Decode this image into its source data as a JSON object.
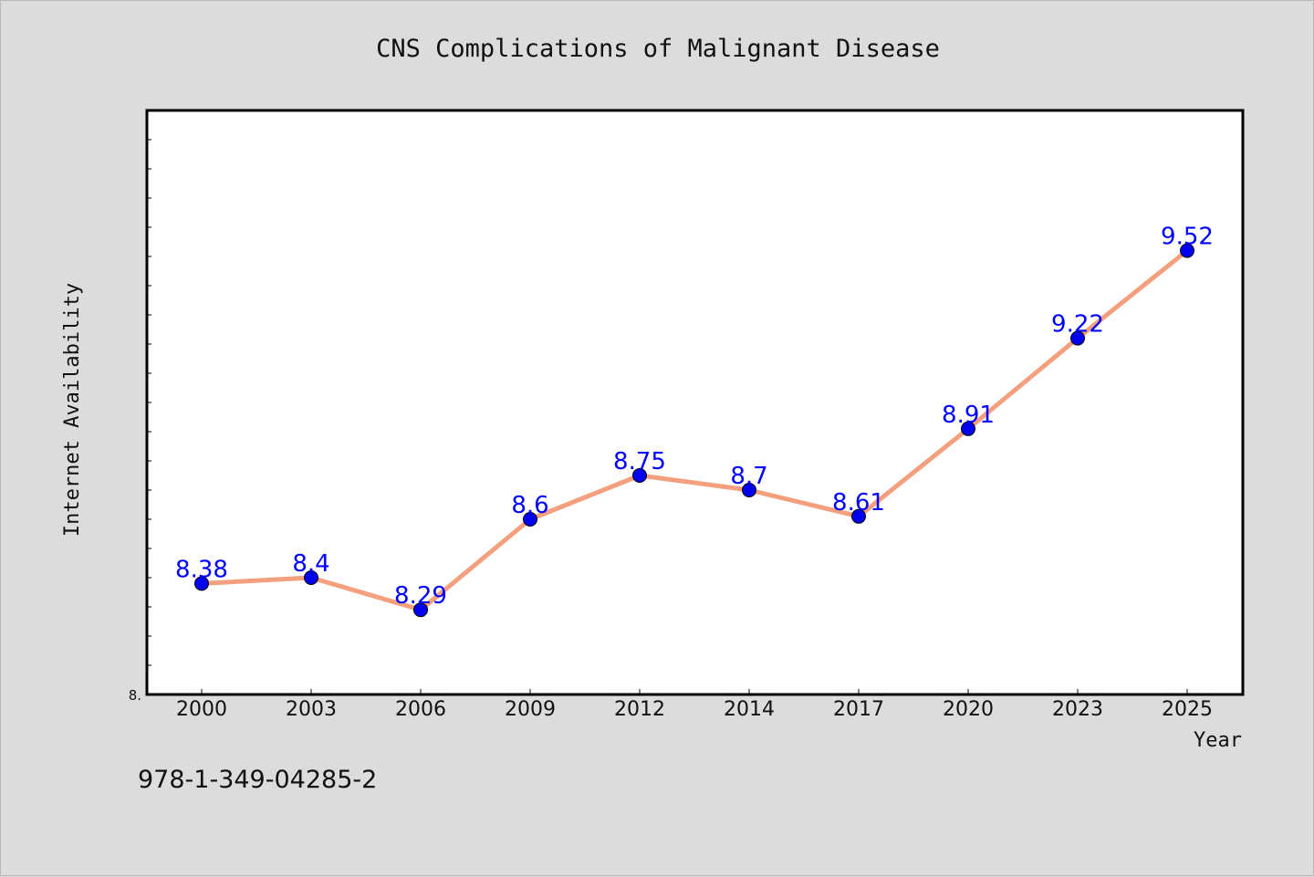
{
  "chart_data": {
    "type": "line",
    "title": "CNS Complications of Malignant Disease",
    "xlabel": "Year",
    "ylabel": "Internet Availability",
    "categories": [
      "2000",
      "2003",
      "2006",
      "2009",
      "2012",
      "2014",
      "2017",
      "2020",
      "2023",
      "2025"
    ],
    "series": [
      {
        "values": [
          8.38,
          8.4,
          8.29,
          8.6,
          8.75,
          8.7,
          8.61,
          8.91,
          9.22,
          9.52
        ],
        "labels": [
          "8.38",
          "8.4",
          "8.29",
          "8.6",
          "8.75",
          "8.7",
          "8.61",
          "8.91",
          "9.22",
          "9.52"
        ],
        "line_color": "#f4a07f",
        "marker_color": "#0000ee",
        "label_color": "#0000ff"
      }
    ],
    "ylim": [
      8.0,
      10.0
    ],
    "y_tick_label": "8.",
    "grid": false,
    "legend": "none",
    "footnote": "978-1-349-04285-2"
  },
  "colors": {
    "background": "#dcdcdc",
    "plot_background": "#ffffff",
    "axis": "#000000"
  }
}
